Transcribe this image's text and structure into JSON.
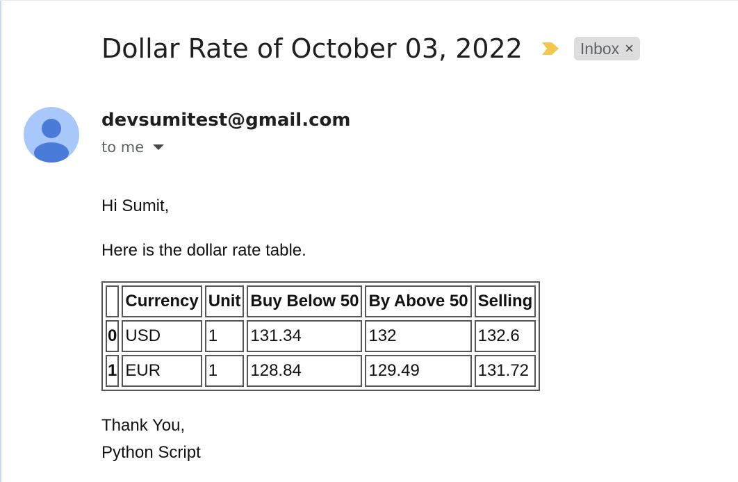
{
  "email": {
    "subject": "Dollar Rate of October 03, 2022",
    "label": "Inbox",
    "label_close": "×",
    "importance_color": "#f2c94c",
    "avatar_color": "#a8c7fa",
    "avatar_figure_color": "#4a7bd8",
    "sender": "devsumitest@gmail.com",
    "recipient": "to me",
    "greeting": "Hi Sumit,",
    "intro": "Here is the dollar rate table.",
    "closing": "Thank You,",
    "signature": "Python Script"
  },
  "table": {
    "headers": [
      "",
      "Currency",
      "Unit",
      "Buy Below 50",
      "By Above 50",
      "Selling"
    ],
    "rows": [
      [
        "0",
        "USD",
        "1",
        "131.34",
        "132",
        "132.6"
      ],
      [
        "1",
        "EUR",
        "1",
        "128.84",
        "129.49",
        "131.72"
      ]
    ]
  }
}
